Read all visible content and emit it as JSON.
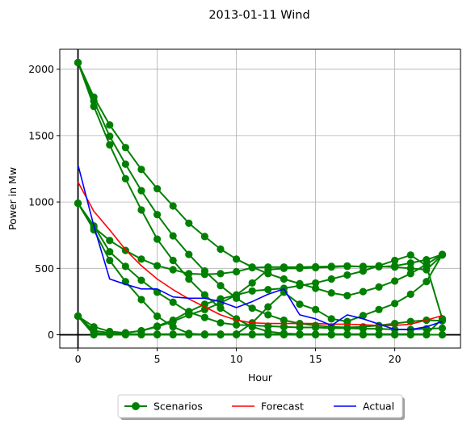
{
  "chart_data": {
    "type": "line",
    "title": "2013-01-11 Wind",
    "xlabel": "Hour",
    "ylabel": "Power in Mw",
    "xlim": [
      -1.15,
      24.15
    ],
    "ylim": [
      -100,
      2150
    ],
    "xticks": [
      0,
      5,
      10,
      15,
      20
    ],
    "yticks": [
      0,
      500,
      1000,
      1500,
      2000
    ],
    "grid": true,
    "legend": {
      "placement": "bottom-center",
      "entries": [
        "Scenarios",
        "Forecast",
        "Actual"
      ]
    },
    "reference_lines": {
      "x": 0,
      "y": 0
    },
    "x": [
      0,
      1,
      2,
      3,
      4,
      5,
      6,
      7,
      8,
      9,
      10,
      11,
      12,
      13,
      14,
      15,
      16,
      17,
      18,
      19,
      20,
      21,
      22,
      23
    ],
    "series": [
      {
        "name": "Scenarios",
        "color": "#008000",
        "marker": "circle",
        "lines": [
          [
            2050,
            1790,
            1580,
            1410,
            1245,
            1100,
            970,
            840,
            740,
            645,
            570,
            510,
            460,
            420,
            385,
            350,
            315,
            295,
            325,
            360,
            405,
            460,
            530,
            605
          ],
          [
            2050,
            1760,
            1495,
            1285,
            1085,
            905,
            745,
            605,
            480,
            370,
            275,
            200,
            150,
            110,
            85,
            70,
            60,
            55,
            60,
            70,
            85,
            100,
            110,
            105
          ],
          [
            2050,
            1720,
            1430,
            1175,
            940,
            720,
            560,
            420,
            300,
            200,
            120,
            60,
            25,
            10,
            5,
            2,
            0,
            0,
            0,
            0,
            0,
            0,
            0,
            0
          ],
          [
            990,
            820,
            625,
            515,
            410,
            320,
            245,
            170,
            130,
            90,
            75,
            70,
            65,
            60,
            55,
            55,
            50,
            50,
            45,
            45,
            40,
            40,
            45,
            50
          ],
          [
            990,
            810,
            710,
            635,
            570,
            520,
            490,
            460,
            455,
            460,
            475,
            505,
            510,
            510,
            510,
            512,
            515,
            518,
            512,
            512,
            518,
            540,
            565,
            605
          ],
          [
            990,
            790,
            560,
            400,
            265,
            140,
            60,
            10,
            0,
            0,
            5,
            90,
            210,
            320,
            230,
            190,
            120,
            100,
            145,
            190,
            235,
            305,
            400,
            605
          ],
          [
            140,
            60,
            25,
            15,
            30,
            60,
            100,
            150,
            190,
            240,
            300,
            390,
            490,
            500,
            500,
            505,
            510,
            515,
            515,
            515,
            510,
            500,
            490,
            600
          ],
          [
            140,
            30,
            15,
            15,
            30,
            65,
            110,
            175,
            230,
            270,
            300,
            330,
            340,
            350,
            370,
            390,
            420,
            450,
            480,
            520,
            560,
            600,
            520,
            120
          ],
          [
            140,
            15,
            5,
            5,
            5,
            5,
            5,
            5,
            5,
            5,
            5,
            5,
            5,
            5,
            5,
            5,
            5,
            5,
            5,
            5,
            5,
            5,
            5,
            120
          ],
          [
            140,
            0,
            0,
            0,
            0,
            0,
            0,
            0,
            0,
            0,
            0,
            0,
            0,
            0,
            0,
            0,
            0,
            0,
            0,
            0,
            0,
            0,
            0,
            0
          ]
        ]
      },
      {
        "name": "Forecast",
        "color": "#ff0000",
        "values": [
          1150,
          930,
          790,
          640,
          520,
          420,
          340,
          270,
          210,
          150,
          110,
          90,
          85,
          85,
          85,
          85,
          80,
          80,
          75,
          70,
          70,
          80,
          110,
          145
        ]
      },
      {
        "name": "Actual",
        "color": "#0000ff",
        "values": [
          1280,
          820,
          420,
          380,
          345,
          345,
          285,
          275,
          275,
          250,
          205,
          250,
          305,
          345,
          150,
          120,
          70,
          150,
          120,
          80,
          40,
          40,
          60,
          100
        ]
      }
    ]
  }
}
